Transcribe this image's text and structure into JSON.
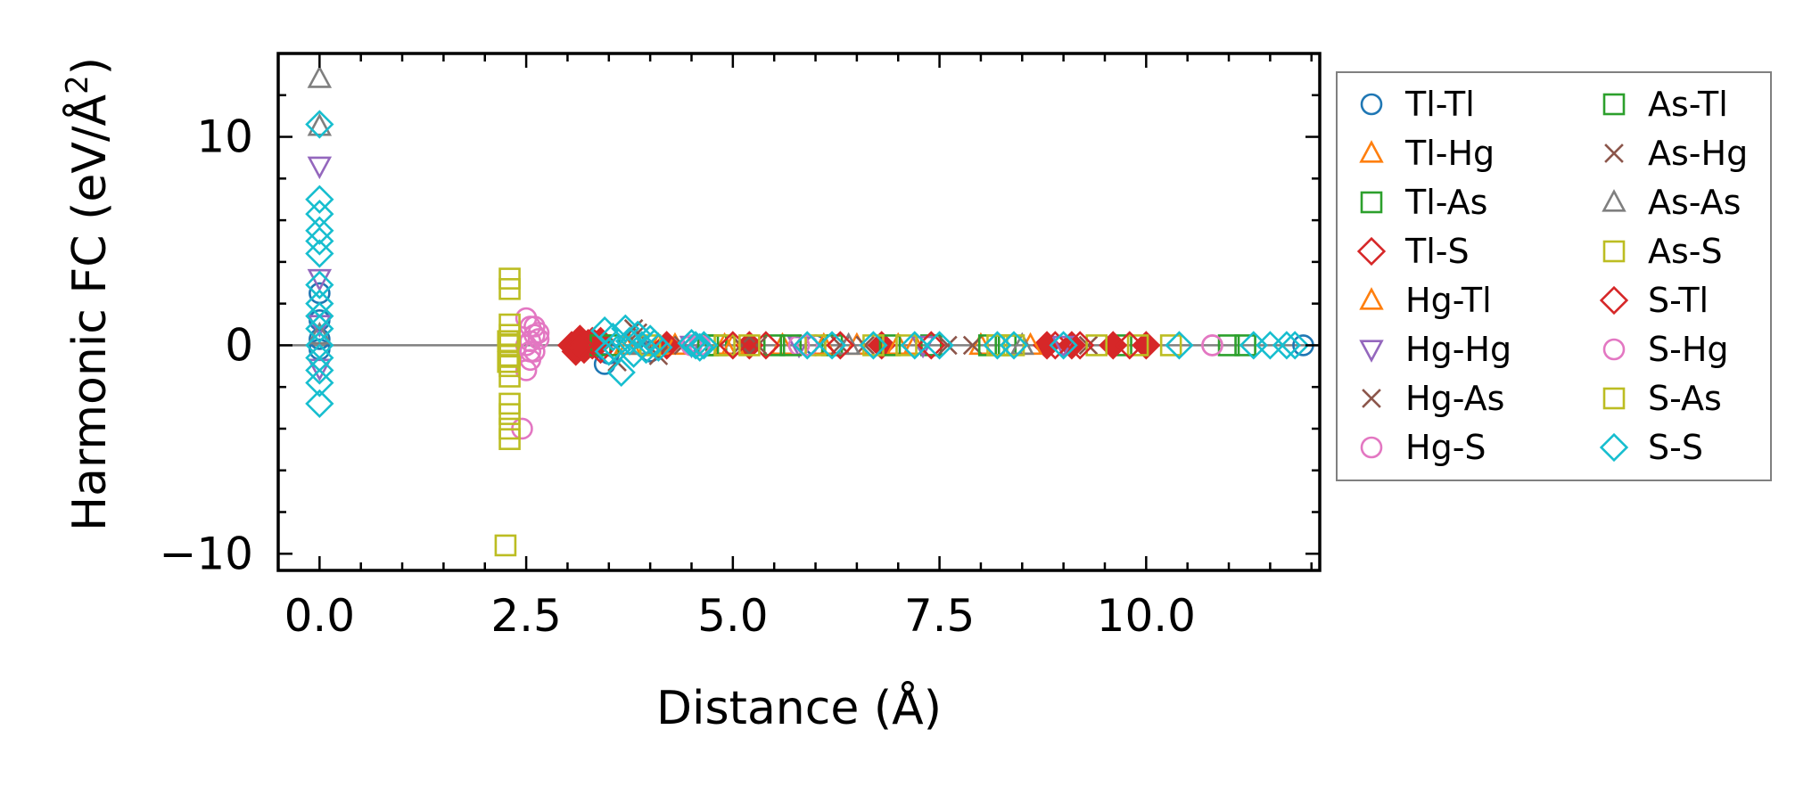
{
  "chart_data": {
    "type": "scatter",
    "title": "",
    "xlabel": "Distance (Å)",
    "ylabel": "Harmonic FC (eV/Å²)",
    "ylabel_parts": {
      "main": "Harmonic FC (eV/Å",
      "sup": "2",
      "end": ")"
    },
    "xlim": [
      -0.5,
      12.1
    ],
    "ylim": [
      -10.8,
      14.0
    ],
    "xticks": [
      0.0,
      2.5,
      5.0,
      7.5,
      10.0
    ],
    "xtick_labels": [
      "0.0",
      "2.5",
      "5.0",
      "7.5",
      "10.0"
    ],
    "yticks": [
      -10,
      0,
      10
    ],
    "ytick_labels": [
      "−10",
      "0",
      "10"
    ],
    "reference_line_y": 0,
    "legend_position": "outside-right",
    "series": [
      {
        "name": "Tl-Tl",
        "marker": "circle",
        "color": "#1f77b4",
        "filled": false,
        "points": [
          [
            0,
            2.5
          ],
          [
            0,
            1.2
          ],
          [
            0,
            0.3
          ],
          [
            0,
            -0.2
          ],
          [
            3.45,
            -0.9
          ],
          [
            3.5,
            -0.4
          ],
          [
            4.0,
            -0.3
          ],
          [
            4.6,
            0
          ],
          [
            6.0,
            0
          ],
          [
            11.9,
            0
          ]
        ]
      },
      {
        "name": "Tl-Hg",
        "marker": "triangle-up",
        "color": "#ff7f0e",
        "filled": false,
        "points": [
          [
            3.7,
            0
          ],
          [
            4.1,
            0
          ],
          [
            4.9,
            0
          ],
          [
            5.6,
            0
          ],
          [
            6.5,
            0
          ],
          [
            7.2,
            0
          ],
          [
            8.0,
            0
          ]
        ]
      },
      {
        "name": "Tl-As",
        "marker": "square",
        "color": "#2ca02c",
        "filled": false,
        "points": [
          [
            3.3,
            0
          ],
          [
            3.5,
            0
          ],
          [
            4.8,
            0
          ],
          [
            5.5,
            0
          ],
          [
            6.2,
            0
          ],
          [
            7.4,
            0
          ],
          [
            8.3,
            0
          ],
          [
            9.7,
            0
          ],
          [
            11.2,
            0
          ]
        ]
      },
      {
        "name": "Tl-S",
        "marker": "diamond",
        "color": "#d62728",
        "filled": true,
        "points": [
          [
            3.05,
            0
          ],
          [
            3.1,
            -0.3
          ],
          [
            3.15,
            0.3
          ],
          [
            3.2,
            -0.2
          ],
          [
            3.25,
            0.1
          ],
          [
            3.3,
            0
          ],
          [
            3.4,
            0.2
          ],
          [
            4.2,
            0
          ],
          [
            5.2,
            0
          ],
          [
            6.8,
            0
          ],
          [
            8.8,
            0
          ],
          [
            9.1,
            0
          ],
          [
            9.6,
            0
          ],
          [
            10.0,
            0
          ]
        ]
      },
      {
        "name": "Hg-Tl",
        "marker": "triangle-up",
        "color": "#ff7f0e",
        "filled": false,
        "points": [
          [
            3.75,
            0
          ],
          [
            4.3,
            0
          ],
          [
            5.0,
            0
          ],
          [
            6.1,
            0
          ],
          [
            7.0,
            0
          ],
          [
            8.6,
            0
          ]
        ]
      },
      {
        "name": "Hg-Hg",
        "marker": "triangle-down",
        "color": "#9467bd",
        "filled": false,
        "points": [
          [
            0,
            8.6
          ],
          [
            0,
            3.2
          ],
          [
            0,
            1.0
          ],
          [
            0,
            -1.1
          ],
          [
            4.5,
            0
          ],
          [
            5.8,
            0
          ],
          [
            7.3,
            0
          ],
          [
            9.0,
            0
          ]
        ]
      },
      {
        "name": "Hg-As",
        "marker": "x",
        "color": "#8c564b",
        "filled": false,
        "points": [
          [
            3.6,
            -0.8
          ],
          [
            3.8,
            0.8
          ],
          [
            4.4,
            0
          ],
          [
            5.3,
            0
          ],
          [
            6.6,
            0
          ],
          [
            7.9,
            0
          ],
          [
            9.3,
            0
          ]
        ]
      },
      {
        "name": "Hg-S",
        "marker": "circle",
        "color": "#e377c2",
        "filled": false,
        "points": [
          [
            2.5,
            1.3
          ],
          [
            2.55,
            0.9
          ],
          [
            2.6,
            0.5
          ],
          [
            2.55,
            0.2
          ],
          [
            2.5,
            0
          ],
          [
            2.6,
            -0.3
          ],
          [
            2.55,
            -0.7
          ],
          [
            2.5,
            -1.2
          ],
          [
            2.45,
            -4.0
          ],
          [
            2.65,
            0.6
          ],
          [
            4.5,
            0
          ],
          [
            5.8,
            0
          ],
          [
            10.8,
            0
          ]
        ]
      },
      {
        "name": "As-Tl",
        "marker": "square",
        "color": "#2ca02c",
        "filled": false,
        "points": [
          [
            3.4,
            0
          ],
          [
            4.7,
            0
          ],
          [
            5.7,
            0
          ],
          [
            6.9,
            0
          ],
          [
            8.1,
            0
          ],
          [
            11.0,
            0
          ]
        ]
      },
      {
        "name": "As-Hg",
        "marker": "x",
        "color": "#8c564b",
        "filled": false,
        "points": [
          [
            3.85,
            0.6
          ],
          [
            4.1,
            -0.5
          ],
          [
            5.1,
            0
          ],
          [
            6.3,
            0
          ],
          [
            7.6,
            0
          ]
        ]
      },
      {
        "name": "As-As",
        "marker": "triangle-up",
        "color": "#7f7f7f",
        "filled": false,
        "points": [
          [
            0,
            12.8
          ],
          [
            0,
            10.5
          ],
          [
            0,
            0.5
          ],
          [
            3.9,
            0
          ],
          [
            6.4,
            0
          ],
          [
            8.5,
            0
          ]
        ]
      },
      {
        "name": "As-S",
        "marker": "square",
        "color": "#bcbd22",
        "filled": false,
        "points": [
          [
            2.3,
            3.2
          ],
          [
            2.3,
            2.7
          ],
          [
            2.3,
            1.0
          ],
          [
            2.3,
            0.5
          ],
          [
            2.3,
            0
          ],
          [
            2.3,
            -0.5
          ],
          [
            2.3,
            -1.0
          ],
          [
            2.3,
            -1.5
          ],
          [
            2.3,
            -2.8
          ],
          [
            2.3,
            -3.3
          ],
          [
            2.3,
            -4.0
          ],
          [
            2.3,
            -4.5
          ],
          [
            2.25,
            -9.6
          ],
          [
            4.9,
            0
          ],
          [
            6.0,
            0
          ],
          [
            7.1,
            0
          ],
          [
            8.2,
            0
          ],
          [
            9.4,
            0
          ],
          [
            9.9,
            0
          ],
          [
            10.3,
            0
          ]
        ]
      },
      {
        "name": "S-Tl",
        "marker": "diamond",
        "color": "#d62728",
        "filled": false,
        "points": [
          [
            3.15,
            0
          ],
          [
            3.3,
            0.2
          ],
          [
            3.4,
            -0.2
          ],
          [
            4.2,
            0
          ],
          [
            5.0,
            0
          ],
          [
            5.4,
            0
          ],
          [
            6.3,
            0
          ],
          [
            7.4,
            0
          ],
          [
            8.9,
            0
          ],
          [
            9.2,
            0
          ],
          [
            9.8,
            0
          ]
        ]
      },
      {
        "name": "S-Hg",
        "marker": "circle",
        "color": "#e377c2",
        "filled": false,
        "points": [
          [
            2.6,
            0.9
          ],
          [
            2.55,
            -0.3
          ],
          [
            2.65,
            0.3
          ],
          [
            4.6,
            0
          ],
          [
            5.9,
            0
          ],
          [
            10.8,
            0
          ]
        ]
      },
      {
        "name": "S-As",
        "marker": "square",
        "color": "#bcbd22",
        "filled": false,
        "points": [
          [
            2.28,
            -0.8
          ],
          [
            2.28,
            0.2
          ],
          [
            4.0,
            0
          ],
          [
            5.2,
            0
          ],
          [
            6.7,
            0
          ],
          [
            8.4,
            0
          ]
        ]
      },
      {
        "name": "S-S",
        "marker": "diamond",
        "color": "#17becf",
        "filled": false,
        "points": [
          [
            0,
            10.6
          ],
          [
            0,
            7.0
          ],
          [
            0,
            6.3
          ],
          [
            0,
            5.5
          ],
          [
            0,
            5.0
          ],
          [
            0,
            4.4
          ],
          [
            0,
            2.9
          ],
          [
            0,
            2.0
          ],
          [
            0,
            1.4
          ],
          [
            0,
            0.8
          ],
          [
            0,
            0
          ],
          [
            0,
            -0.6
          ],
          [
            0,
            -1.2
          ],
          [
            0,
            -1.8
          ],
          [
            0,
            -2.8
          ],
          [
            3.45,
            0.7
          ],
          [
            3.5,
            -0.3
          ],
          [
            3.55,
            0.4
          ],
          [
            3.6,
            -0.2
          ],
          [
            3.65,
            -1.3
          ],
          [
            3.7,
            0.8
          ],
          [
            3.75,
            0.2
          ],
          [
            3.8,
            -0.4
          ],
          [
            3.85,
            0.5
          ],
          [
            3.9,
            0
          ],
          [
            3.95,
            -0.2
          ],
          [
            4.0,
            0.3
          ],
          [
            4.05,
            0.1
          ],
          [
            4.1,
            -0.1
          ],
          [
            4.5,
            0.1
          ],
          [
            4.55,
            0
          ],
          [
            4.6,
            -0.1
          ],
          [
            4.65,
            0
          ],
          [
            5.9,
            0
          ],
          [
            6.2,
            0
          ],
          [
            6.7,
            0
          ],
          [
            7.2,
            0
          ],
          [
            7.5,
            0
          ],
          [
            8.2,
            0
          ],
          [
            8.4,
            0
          ],
          [
            9.0,
            0
          ],
          [
            10.4,
            0
          ],
          [
            11.3,
            0
          ],
          [
            11.5,
            0
          ],
          [
            11.7,
            0
          ],
          [
            11.8,
            0
          ]
        ]
      }
    ]
  }
}
